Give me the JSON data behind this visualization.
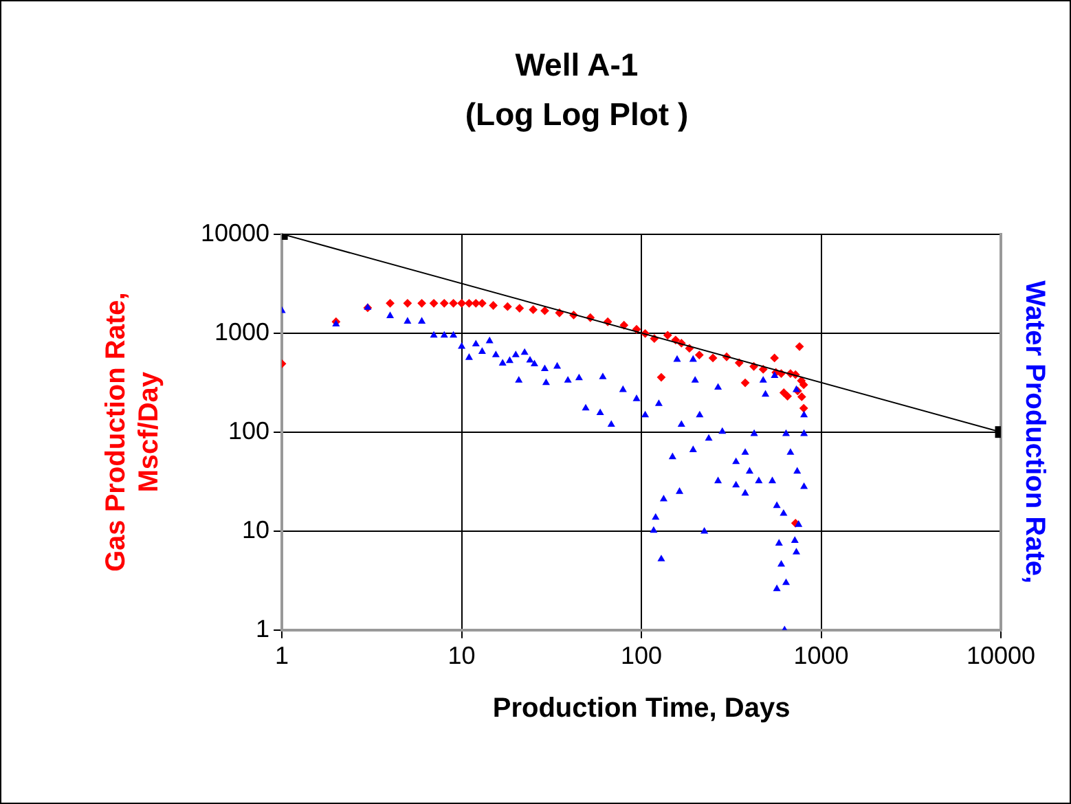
{
  "chart_data": {
    "type": "scatter",
    "title": "Well A-1\n(Log Log Plot )",
    "xlabel": "Production Time, Days",
    "ylabel": "Gas Production Rate, Mscf/Day",
    "y2label": "Water Production Rate,",
    "log": "xy",
    "grid": true,
    "xlim": [
      1,
      10000
    ],
    "ylim": [
      1,
      10000
    ],
    "xticks": [
      1,
      10,
      100,
      1000,
      10000
    ],
    "yticks": [
      1,
      10,
      100,
      1000,
      10000
    ],
    "series": [
      {
        "color": "#ff0000",
        "marker": "diamond",
        "x": [
          1,
          2,
          3,
          4,
          5,
          6,
          7,
          8,
          9,
          10,
          11,
          12,
          13,
          15,
          18,
          21,
          25,
          29,
          35,
          42,
          52,
          65,
          80,
          94,
          105,
          118,
          129,
          140,
          155,
          167,
          185,
          210,
          250,
          298,
          350,
          378,
          422,
          476,
          550,
          560,
          600,
          675,
          720,
          758,
          776,
          800,
          800,
          780,
          740,
          650,
          620,
          720
        ],
        "values": [
          490,
          1300,
          1800,
          2000,
          2000,
          2000,
          2000,
          2000,
          2000,
          2000,
          2000,
          2000,
          2000,
          1900,
          1850,
          1780,
          1720,
          1680,
          1600,
          1520,
          1430,
          1300,
          1200,
          1090,
          990,
          880,
          357,
          950,
          850,
          790,
          700,
          600,
          560,
          575,
          500,
          314,
          460,
          430,
          560,
          400,
          390,
          390,
          380,
          730,
          330,
          300,
          174,
          227,
          260,
          230,
          250,
          12
        ]
      },
      {
        "color": "#0000ff",
        "marker": "triangle",
        "x": [
          1,
          2,
          3,
          4,
          5,
          6,
          7,
          8,
          9,
          10,
          11,
          12,
          13,
          14.3,
          15.5,
          16.9,
          18.5,
          20,
          20.8,
          22.4,
          24,
          25.4,
          29,
          29.5,
          34,
          39,
          45,
          49,
          59,
          61,
          68,
          79,
          94,
          105,
          117,
          120,
          125,
          129,
          133,
          149,
          158,
          163,
          167,
          194,
          194,
          199,
          211,
          224,
          237,
          267,
          267,
          282,
          336,
          336,
          378,
          378,
          400,
          424,
          450,
          476,
          490,
          535,
          551,
          567,
          567,
          583,
          600,
          618,
          626,
          638,
          638,
          675,
          714,
          728,
          728,
          736,
          749,
          803,
          803,
          803
        ],
        "values": [
          1680,
          1230,
          1810,
          1490,
          1310,
          1310,
          946,
          946,
          946,
          730,
          564,
          771,
          649,
          831,
          600,
          494,
          525,
          600,
          332,
          635,
          530,
          485,
          434,
          314,
          460,
          332,
          351,
          174,
          156,
          360,
          119,
          267,
          216,
          148,
          10.1,
          13.7,
          193,
          5.2,
          21,
          56,
          540,
          25,
          119,
          540,
          66,
          332,
          148,
          9.9,
          86,
          282,
          32,
          101,
          29,
          50,
          24,
          62,
          40,
          96,
          32,
          332,
          240,
          32,
          370,
          18,
          2.6,
          7.5,
          4.6,
          15,
          1,
          3,
          96,
          62,
          8,
          6.1,
          267,
          40,
          11.6,
          28,
          96,
          148
        ]
      },
      {
        "type": "line",
        "color": "#000000",
        "marker": "square",
        "x": [
          1,
          10000
        ],
        "values": [
          10000,
          100
        ]
      }
    ]
  }
}
